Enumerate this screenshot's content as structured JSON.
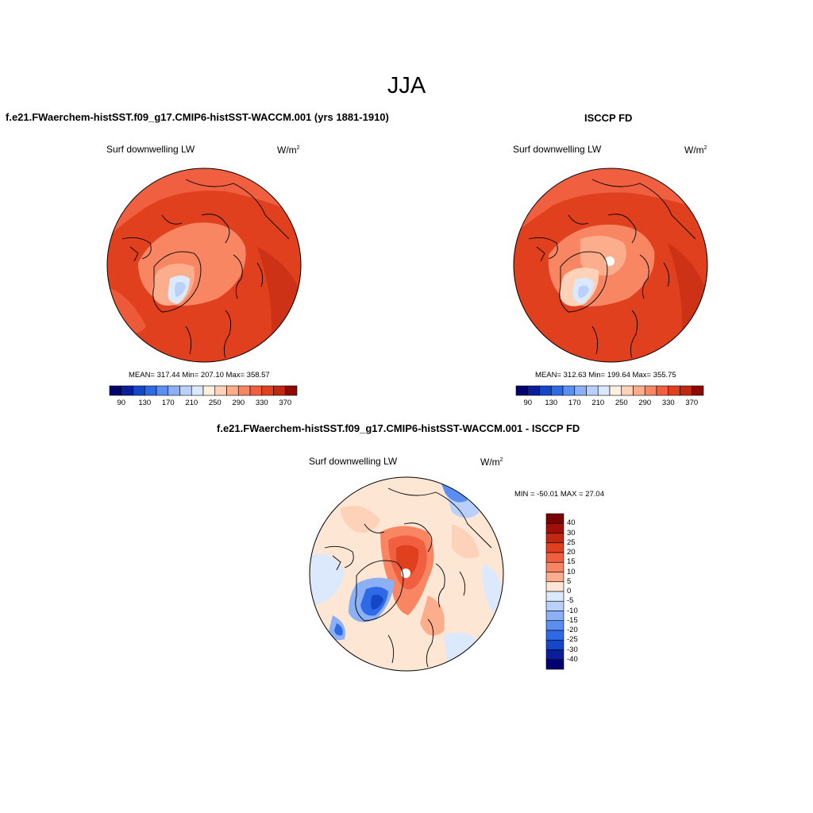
{
  "season": "JJA",
  "panels": {
    "model": {
      "title": "f.e21.FWaerchem-histSST.f09_g17.CMIP6-histSST-WACCM.001 (yrs 1881-1910)",
      "variable": "Surf downwelling LW",
      "units_base": "W/m",
      "units_exp": "2",
      "stats": "MEAN= 317.44  Min= 207.10  Max= 358.57"
    },
    "obs": {
      "title": "ISCCP FD",
      "variable": "Surf downwelling LW",
      "units_base": "W/m",
      "units_exp": "2",
      "stats": "MEAN= 312.63  Min= 199.64  Max= 355.75"
    },
    "diff": {
      "title": "f.e21.FWaerchem-histSST.f09_g17.CMIP6-histSST-WACCM.001 - ISCCP FD",
      "variable": "Surf downwelling LW",
      "units_base": "W/m",
      "units_exp": "2",
      "stats": "MIN = -50.01 MAX =  27.04"
    }
  },
  "abs_colorbar": {
    "labels": [
      "90",
      "130",
      "170",
      "210",
      "250",
      "290",
      "330",
      "370"
    ],
    "colors": [
      "#00006e",
      "#0a1e9a",
      "#1446c8",
      "#2e6ae6",
      "#5a8ef0",
      "#8cb0f5",
      "#b8d0fa",
      "#dce8fc",
      "#fff0e0",
      "#fdd2b8",
      "#fcae8c",
      "#f88662",
      "#f06040",
      "#e0401e",
      "#c02810",
      "#8c0a00"
    ]
  },
  "diff_colorbar": {
    "labels": [
      "40",
      "30",
      "25",
      "20",
      "15",
      "10",
      "5",
      "0",
      "-5",
      "-10",
      "-15",
      "-20",
      "-25",
      "-30",
      "-40"
    ],
    "colors": [
      "#7a0000",
      "#a01008",
      "#c02810",
      "#e0401e",
      "#f06040",
      "#f88662",
      "#fcae8c",
      "#fee6d4",
      "#dce8fc",
      "#b8d0fa",
      "#8cb0f5",
      "#5a8ef0",
      "#2e6ae6",
      "#1446c8",
      "#0a1e9a",
      "#00006e"
    ]
  }
}
